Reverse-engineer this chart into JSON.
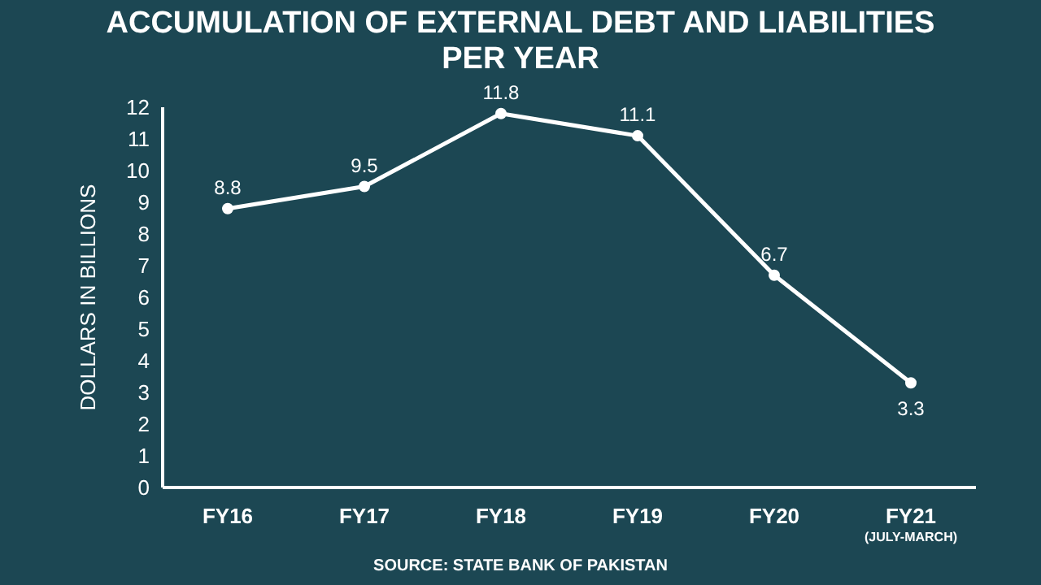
{
  "chart_data": {
    "type": "line",
    "title": "ACCUMULATION OF EXTERNAL DEBT AND LIABILITIES PER YEAR",
    "ylabel": "DOLLARS IN BILLIONS",
    "categories": [
      "FY16",
      "FY17",
      "FY18",
      "FY19",
      "FY20",
      "FY21\n(JULY-MARCH)"
    ],
    "series": [
      {
        "color": "#ffffff",
        "values": [
          8.8,
          9.5,
          11.8,
          11.1,
          6.7,
          3.3
        ]
      }
    ],
    "ylim": [
      0,
      12
    ],
    "yticks": [
      0,
      1,
      2,
      3,
      4,
      5,
      6,
      7,
      8,
      9,
      10,
      11,
      12
    ],
    "data_labels": true,
    "marker": "circle",
    "grid": false,
    "legend": false,
    "annotations": [
      "SOURCE: STATE BANK OF PAKISTAN"
    ]
  }
}
